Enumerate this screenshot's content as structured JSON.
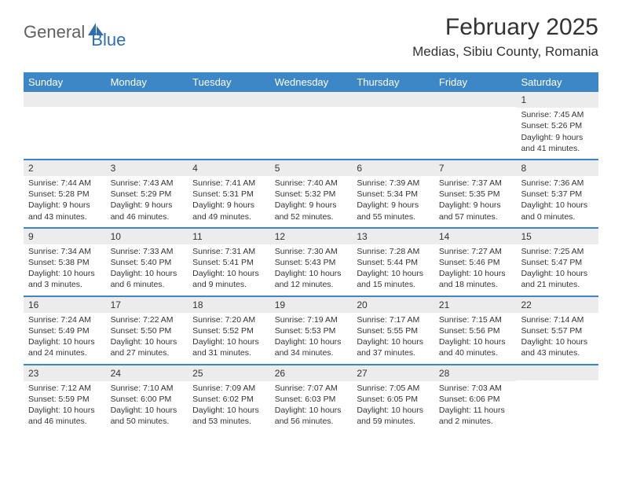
{
  "logo": {
    "part1": "General",
    "part2": "Blue"
  },
  "title": "February 2025",
  "location": "Medias, Sibiu County, Romania",
  "colors": {
    "header_bg": "#3d87c7",
    "header_text": "#ffffff",
    "daynum_bg": "#ececec",
    "border": "#3d87c7",
    "text": "#333333",
    "logo_gray": "#606060",
    "logo_blue": "#2f6fb0"
  },
  "day_names": [
    "Sunday",
    "Monday",
    "Tuesday",
    "Wednesday",
    "Thursday",
    "Friday",
    "Saturday"
  ],
  "weeks": [
    [
      {
        "n": "",
        "sr": "",
        "ss": "",
        "dl": ""
      },
      {
        "n": "",
        "sr": "",
        "ss": "",
        "dl": ""
      },
      {
        "n": "",
        "sr": "",
        "ss": "",
        "dl": ""
      },
      {
        "n": "",
        "sr": "",
        "ss": "",
        "dl": ""
      },
      {
        "n": "",
        "sr": "",
        "ss": "",
        "dl": ""
      },
      {
        "n": "",
        "sr": "",
        "ss": "",
        "dl": ""
      },
      {
        "n": "1",
        "sr": "Sunrise: 7:45 AM",
        "ss": "Sunset: 5:26 PM",
        "dl": "Daylight: 9 hours and 41 minutes."
      }
    ],
    [
      {
        "n": "2",
        "sr": "Sunrise: 7:44 AM",
        "ss": "Sunset: 5:28 PM",
        "dl": "Daylight: 9 hours and 43 minutes."
      },
      {
        "n": "3",
        "sr": "Sunrise: 7:43 AM",
        "ss": "Sunset: 5:29 PM",
        "dl": "Daylight: 9 hours and 46 minutes."
      },
      {
        "n": "4",
        "sr": "Sunrise: 7:41 AM",
        "ss": "Sunset: 5:31 PM",
        "dl": "Daylight: 9 hours and 49 minutes."
      },
      {
        "n": "5",
        "sr": "Sunrise: 7:40 AM",
        "ss": "Sunset: 5:32 PM",
        "dl": "Daylight: 9 hours and 52 minutes."
      },
      {
        "n": "6",
        "sr": "Sunrise: 7:39 AM",
        "ss": "Sunset: 5:34 PM",
        "dl": "Daylight: 9 hours and 55 minutes."
      },
      {
        "n": "7",
        "sr": "Sunrise: 7:37 AM",
        "ss": "Sunset: 5:35 PM",
        "dl": "Daylight: 9 hours and 57 minutes."
      },
      {
        "n": "8",
        "sr": "Sunrise: 7:36 AM",
        "ss": "Sunset: 5:37 PM",
        "dl": "Daylight: 10 hours and 0 minutes."
      }
    ],
    [
      {
        "n": "9",
        "sr": "Sunrise: 7:34 AM",
        "ss": "Sunset: 5:38 PM",
        "dl": "Daylight: 10 hours and 3 minutes."
      },
      {
        "n": "10",
        "sr": "Sunrise: 7:33 AM",
        "ss": "Sunset: 5:40 PM",
        "dl": "Daylight: 10 hours and 6 minutes."
      },
      {
        "n": "11",
        "sr": "Sunrise: 7:31 AM",
        "ss": "Sunset: 5:41 PM",
        "dl": "Daylight: 10 hours and 9 minutes."
      },
      {
        "n": "12",
        "sr": "Sunrise: 7:30 AM",
        "ss": "Sunset: 5:43 PM",
        "dl": "Daylight: 10 hours and 12 minutes."
      },
      {
        "n": "13",
        "sr": "Sunrise: 7:28 AM",
        "ss": "Sunset: 5:44 PM",
        "dl": "Daylight: 10 hours and 15 minutes."
      },
      {
        "n": "14",
        "sr": "Sunrise: 7:27 AM",
        "ss": "Sunset: 5:46 PM",
        "dl": "Daylight: 10 hours and 18 minutes."
      },
      {
        "n": "15",
        "sr": "Sunrise: 7:25 AM",
        "ss": "Sunset: 5:47 PM",
        "dl": "Daylight: 10 hours and 21 minutes."
      }
    ],
    [
      {
        "n": "16",
        "sr": "Sunrise: 7:24 AM",
        "ss": "Sunset: 5:49 PM",
        "dl": "Daylight: 10 hours and 24 minutes."
      },
      {
        "n": "17",
        "sr": "Sunrise: 7:22 AM",
        "ss": "Sunset: 5:50 PM",
        "dl": "Daylight: 10 hours and 27 minutes."
      },
      {
        "n": "18",
        "sr": "Sunrise: 7:20 AM",
        "ss": "Sunset: 5:52 PM",
        "dl": "Daylight: 10 hours and 31 minutes."
      },
      {
        "n": "19",
        "sr": "Sunrise: 7:19 AM",
        "ss": "Sunset: 5:53 PM",
        "dl": "Daylight: 10 hours and 34 minutes."
      },
      {
        "n": "20",
        "sr": "Sunrise: 7:17 AM",
        "ss": "Sunset: 5:55 PM",
        "dl": "Daylight: 10 hours and 37 minutes."
      },
      {
        "n": "21",
        "sr": "Sunrise: 7:15 AM",
        "ss": "Sunset: 5:56 PM",
        "dl": "Daylight: 10 hours and 40 minutes."
      },
      {
        "n": "22",
        "sr": "Sunrise: 7:14 AM",
        "ss": "Sunset: 5:57 PM",
        "dl": "Daylight: 10 hours and 43 minutes."
      }
    ],
    [
      {
        "n": "23",
        "sr": "Sunrise: 7:12 AM",
        "ss": "Sunset: 5:59 PM",
        "dl": "Daylight: 10 hours and 46 minutes."
      },
      {
        "n": "24",
        "sr": "Sunrise: 7:10 AM",
        "ss": "Sunset: 6:00 PM",
        "dl": "Daylight: 10 hours and 50 minutes."
      },
      {
        "n": "25",
        "sr": "Sunrise: 7:09 AM",
        "ss": "Sunset: 6:02 PM",
        "dl": "Daylight: 10 hours and 53 minutes."
      },
      {
        "n": "26",
        "sr": "Sunrise: 7:07 AM",
        "ss": "Sunset: 6:03 PM",
        "dl": "Daylight: 10 hours and 56 minutes."
      },
      {
        "n": "27",
        "sr": "Sunrise: 7:05 AM",
        "ss": "Sunset: 6:05 PM",
        "dl": "Daylight: 10 hours and 59 minutes."
      },
      {
        "n": "28",
        "sr": "Sunrise: 7:03 AM",
        "ss": "Sunset: 6:06 PM",
        "dl": "Daylight: 11 hours and 2 minutes."
      },
      {
        "n": "",
        "sr": "",
        "ss": "",
        "dl": ""
      }
    ]
  ]
}
